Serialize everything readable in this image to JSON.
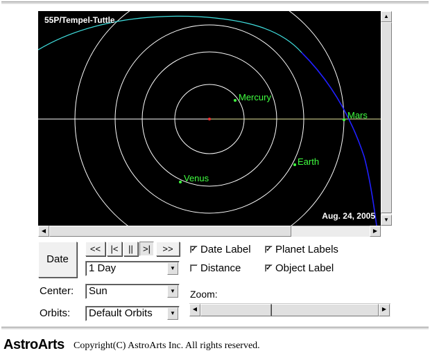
{
  "view": {
    "object_name": "55P/Tempel-Tuttle",
    "date_label": "Aug. 24, 2005",
    "planets": [
      {
        "name": "Mercury"
      },
      {
        "name": "Venus"
      },
      {
        "name": "Earth"
      },
      {
        "name": "Mars"
      }
    ]
  },
  "controls": {
    "date_button": "Date",
    "nav": {
      "rewind": "<<",
      "step_back": "|<",
      "pause": "||",
      "step_forward": ">|",
      "forward": ">>"
    },
    "step_select": "1 Day",
    "center_label": "Center:",
    "center_select": "Sun",
    "orbits_label": "Orbits:",
    "orbits_select": "Default Orbits",
    "checkboxes": {
      "date_label": {
        "label": "Date Label",
        "checked": true
      },
      "planet_labels": {
        "label": "Planet Labels",
        "checked": true
      },
      "distance": {
        "label": "Distance",
        "checked": false
      },
      "object_label": {
        "label": "Object Label",
        "checked": true
      }
    },
    "zoom_label": "Zoom:"
  },
  "footer": {
    "logo": "AstroArts",
    "copyright": "Copyright(C) AstroArts Inc. All rights reserved."
  }
}
